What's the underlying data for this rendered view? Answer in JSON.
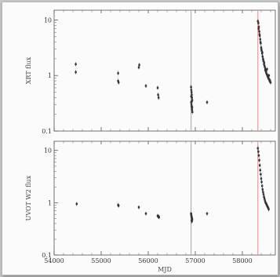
{
  "chart_data": [
    {
      "type": "scatter",
      "panel": "top",
      "ylabel": "XRT flux",
      "xlabel": "",
      "yscale": "log",
      "ylim": [
        0.1,
        15
      ],
      "xlim": [
        54000,
        58700
      ],
      "yticks": [
        0.1,
        1,
        10
      ],
      "ytick_labels": [
        "0.1",
        "1",
        "10"
      ],
      "xticks": [
        54000,
        55000,
        56000,
        57000,
        58000
      ],
      "xtick_labels": [
        "",
        "",
        "",
        "",
        ""
      ],
      "vlines": [
        56910,
        58330
      ],
      "vline_color": "#e58a8a",
      "marker_color": "#333333",
      "series": [
        {
          "x": [
            54460,
            54460,
            55360,
            55360,
            55370,
            55800,
            55810,
            55950,
            56200,
            56210,
            56220,
            56910,
            56915,
            56920,
            56925,
            56930,
            56935,
            56912,
            56918,
            56922,
            56928,
            56932,
            56938,
            56914,
            56926,
            56934,
            57250,
            58330,
            58340,
            58350,
            58360,
            58370,
            58380,
            58390,
            58400,
            58410,
            58420,
            58430,
            58440,
            58450,
            58460,
            58470,
            58480,
            58490,
            58500,
            58510,
            58520,
            58530,
            58540,
            58550,
            58560,
            58570,
            58580,
            58590,
            58600,
            58345,
            58365,
            58385,
            58405,
            58425,
            58445,
            58465,
            58485,
            58505,
            58525,
            58545,
            58565,
            58585
          ],
          "y": [
            1.6,
            1.15,
            1.1,
            0.8,
            0.75,
            1.4,
            1.55,
            0.65,
            0.6,
            0.45,
            0.4,
            0.62,
            0.55,
            0.5,
            0.45,
            0.4,
            0.36,
            0.33,
            0.3,
            0.28,
            0.26,
            0.24,
            0.22,
            0.42,
            0.34,
            0.27,
            0.33,
            9.5,
            8.8,
            7.5,
            6.2,
            5.2,
            4.5,
            3.8,
            3.2,
            2.8,
            2.5,
            2.2,
            2.0,
            1.8,
            1.6,
            1.5,
            1.4,
            1.3,
            1.2,
            1.1,
            1.05,
            1.0,
            0.95,
            0.9,
            0.88,
            0.85,
            0.8,
            0.78,
            0.75,
            7.0,
            5.5,
            4.0,
            3.0,
            2.6,
            1.9,
            1.7,
            1.25,
            1.15,
            1.3,
            0.98,
            1.0,
            0.82
          ]
        }
      ]
    },
    {
      "type": "scatter",
      "panel": "bottom",
      "ylabel": "UVOT W2 flux",
      "xlabel": "MJD",
      "yscale": "log",
      "ylim": [
        0.1,
        15
      ],
      "xlim": [
        54000,
        58700
      ],
      "yticks": [
        0.1,
        1,
        10
      ],
      "ytick_labels": [
        "0.1",
        "1",
        "10"
      ],
      "xticks": [
        54000,
        55000,
        56000,
        57000,
        58000
      ],
      "xtick_labels": [
        "54000",
        "55000",
        "56000",
        "57000",
        "58000"
      ],
      "vlines": [
        56910,
        58330
      ],
      "vline_color": "#e58a8a",
      "marker_color": "#333333",
      "series": [
        {
          "x": [
            54480,
            55360,
            55370,
            55800,
            55950,
            56200,
            56210,
            56220,
            56230,
            56910,
            56915,
            56920,
            56925,
            56930,
            56935,
            56912,
            56918,
            56922,
            56928,
            57250,
            58330,
            58340,
            58350,
            58360,
            58370,
            58380,
            58390,
            58400,
            58410,
            58420,
            58430,
            58440,
            58450,
            58460,
            58470,
            58480,
            58490,
            58500,
            58510,
            58520,
            58530,
            58540,
            58550,
            58560
          ],
          "y": [
            0.95,
            0.9,
            0.88,
            0.82,
            0.62,
            0.56,
            0.55,
            0.54,
            0.53,
            0.62,
            0.58,
            0.55,
            0.52,
            0.5,
            0.48,
            0.6,
            0.54,
            0.46,
            0.44,
            0.62,
            11.0,
            9.5,
            8.0,
            6.5,
            5.2,
            4.2,
            3.5,
            2.9,
            2.5,
            2.1,
            1.8,
            1.6,
            1.45,
            1.3,
            1.2,
            1.1,
            1.02,
            0.98,
            0.95,
            0.9,
            0.86,
            0.82,
            0.8,
            0.75
          ]
        }
      ]
    }
  ]
}
